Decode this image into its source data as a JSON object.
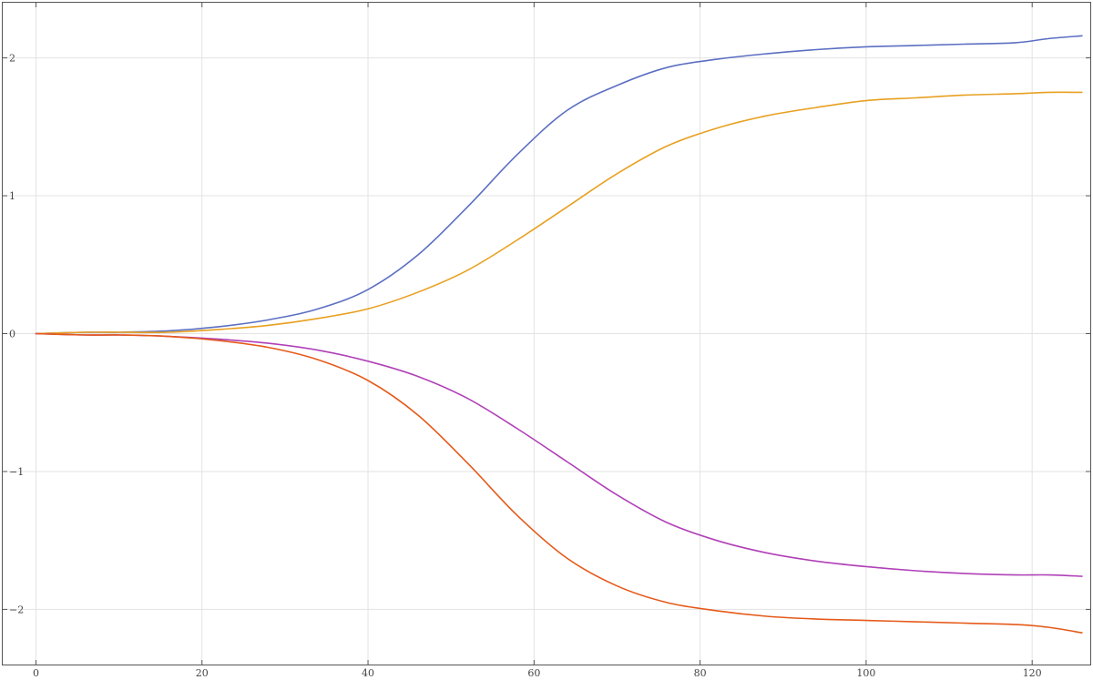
{
  "chart_data": {
    "type": "line",
    "title": "",
    "xlabel": "",
    "ylabel": "",
    "xlim": [
      -4,
      127
    ],
    "ylim": [
      -2.4,
      2.4
    ],
    "grid": true,
    "x_ticks": [
      0,
      20,
      40,
      60,
      80,
      100,
      120
    ],
    "y_ticks": [
      -2,
      -1,
      0,
      1,
      2
    ],
    "x_tick_labels": [
      "0",
      "20",
      "40",
      "60",
      "80",
      "100",
      "120"
    ],
    "y_tick_labels": [
      "−2",
      "−1",
      "0",
      "1",
      "2"
    ],
    "x": [
      0,
      6,
      10,
      16,
      22,
      28,
      34,
      40,
      46,
      52,
      58,
      64,
      70,
      76,
      82,
      88,
      94,
      100,
      106,
      112,
      118,
      122,
      126
    ],
    "series": [
      {
        "color": "#5b6fc2",
        "values": [
          0,
          0.01,
          0.01,
          0.02,
          0.05,
          0.1,
          0.18,
          0.32,
          0.57,
          0.92,
          1.3,
          1.62,
          1.8,
          1.93,
          1.99,
          2.03,
          2.06,
          2.08,
          2.09,
          2.1,
          2.11,
          2.14,
          2.16
        ]
      },
      {
        "color": "#e8a020",
        "values": [
          0,
          0.01,
          0.01,
          0.01,
          0.03,
          0.06,
          0.11,
          0.18,
          0.3,
          0.46,
          0.68,
          0.92,
          1.16,
          1.36,
          1.49,
          1.58,
          1.64,
          1.69,
          1.71,
          1.73,
          1.74,
          1.75,
          1.75
        ]
      },
      {
        "color": "#b040b8",
        "values": [
          0,
          -0.01,
          -0.01,
          -0.02,
          -0.04,
          -0.07,
          -0.12,
          -0.2,
          -0.31,
          -0.47,
          -0.69,
          -0.93,
          -1.17,
          -1.37,
          -1.5,
          -1.59,
          -1.65,
          -1.69,
          -1.72,
          -1.74,
          -1.75,
          -1.75,
          -1.76
        ]
      },
      {
        "color": "#e55a1a",
        "values": [
          0,
          -0.01,
          -0.01,
          -0.02,
          -0.05,
          -0.1,
          -0.19,
          -0.34,
          -0.59,
          -0.94,
          -1.32,
          -1.63,
          -1.83,
          -1.95,
          -2.01,
          -2.05,
          -2.07,
          -2.08,
          -2.09,
          -2.1,
          -2.11,
          -2.13,
          -2.17
        ]
      }
    ]
  }
}
